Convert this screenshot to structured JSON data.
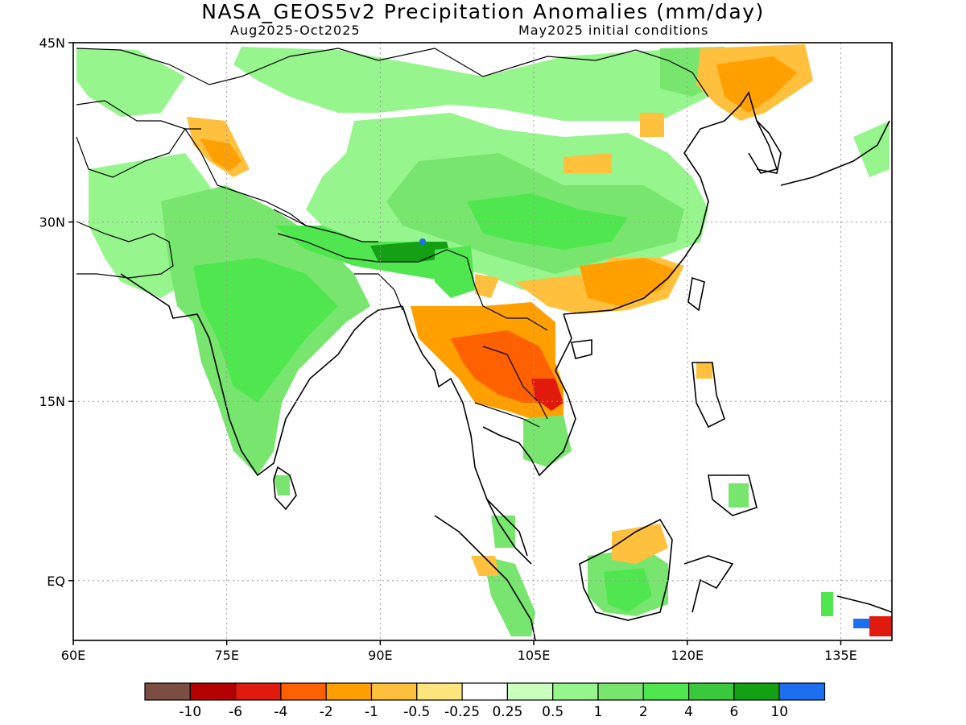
{
  "title": "NASA_GEOS5v2 Precipitation Anomalies (mm/day)",
  "period": "Aug2025-Oct2025",
  "init": "May2025 initial conditions",
  "map": {
    "lon_range": [
      60,
      140
    ],
    "lat_range": [
      -5,
      45
    ],
    "lon_ticks": [
      {
        "v": 60,
        "t": "60E"
      },
      {
        "v": 75,
        "t": "75E"
      },
      {
        "v": 90,
        "t": "90E"
      },
      {
        "v": 105,
        "t": "105E"
      },
      {
        "v": 120,
        "t": "120E"
      },
      {
        "v": 135,
        "t": "135E"
      }
    ],
    "lat_ticks": [
      {
        "v": 45,
        "t": "45N"
      },
      {
        "v": 30,
        "t": "30N"
      },
      {
        "v": 15,
        "t": "15N"
      },
      {
        "v": 0,
        "t": "EQ"
      }
    ],
    "gridlines": "dotted"
  },
  "colorbar": {
    "colors": [
      "#7b4d43",
      "#b40000",
      "#e01a0c",
      "#ff6000",
      "#ff9f00",
      "#ffc03e",
      "#ffe57d",
      "#ffffff",
      "#c8ffbe",
      "#96f58c",
      "#78e66e",
      "#50e650",
      "#3cc83c",
      "#14a014",
      "#1e6ef0"
    ],
    "labels": [
      "-10",
      "-6",
      "-4",
      "-2",
      "-1",
      "-0.5",
      "-0.25",
      "0.25",
      "0.5",
      "1",
      "2",
      "4",
      "6",
      "10"
    ]
  },
  "colors": {
    "green_light": "#96f58c",
    "green_mid": "#78e66e",
    "green": "#50e650",
    "green_dark": "#3cc83c",
    "green_deep": "#14a014",
    "pale_green": "#c8ffbe",
    "yellow": "#ffe57d",
    "light_orange": "#ffc03e",
    "orange": "#ff9f00",
    "dark_orange": "#ff6000",
    "red": "#e01a0c",
    "blue": "#1e6ef0"
  }
}
